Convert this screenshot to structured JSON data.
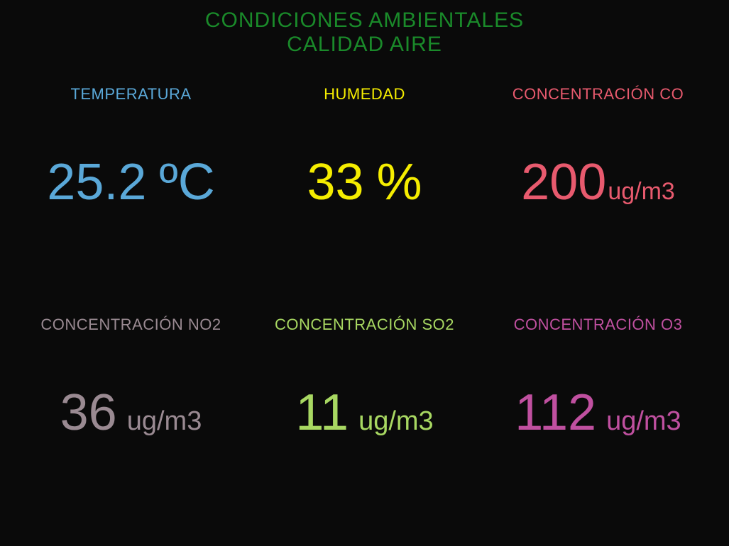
{
  "header": {
    "line1": "CONDICIONES AMBIENTALES",
    "line2": "CALIDAD AIRE",
    "color": "#1a8a2a"
  },
  "background_color": "#0a0a0a",
  "tiles": {
    "temperature": {
      "label": "TEMPERATURA",
      "value": "25.2",
      "unit": "ºC",
      "color": "#5aa8d8",
      "label_fontsize": 22,
      "value_fontsize": 72,
      "unit_fontsize": 72,
      "unit_spaced": true
    },
    "humidity": {
      "label": "HUMEDAD",
      "value": "33",
      "unit": "%",
      "color": "#f5ed00",
      "label_fontsize": 22,
      "value_fontsize": 72,
      "unit_fontsize": 72,
      "unit_spaced": true
    },
    "co": {
      "label": "CONCENTRACIÓN CO",
      "value": "200",
      "unit": "ug/m3",
      "color": "#e85a6e",
      "label_fontsize": 22,
      "value_fontsize": 72,
      "unit_fontsize": 34,
      "unit_spaced": false
    },
    "no2": {
      "label": "CONCENTRACIÓN NO2",
      "value": "36",
      "unit": "ug/m3",
      "color": "#9a8a92",
      "label_fontsize": 22,
      "value_fontsize": 72,
      "unit_fontsize": 38,
      "unit_spaced": true
    },
    "so2": {
      "label": "CONCENTRACIÓN SO2",
      "value": "11",
      "unit": "ug/m3",
      "color": "#a8d862",
      "label_fontsize": 22,
      "value_fontsize": 72,
      "unit_fontsize": 38,
      "unit_spaced": true
    },
    "o3": {
      "label": "CONCENTRACIÓN O3",
      "value": "112",
      "unit": "ug/m3",
      "color": "#c050a0",
      "label_fontsize": 22,
      "value_fontsize": 72,
      "unit_fontsize": 38,
      "unit_spaced": true
    }
  }
}
